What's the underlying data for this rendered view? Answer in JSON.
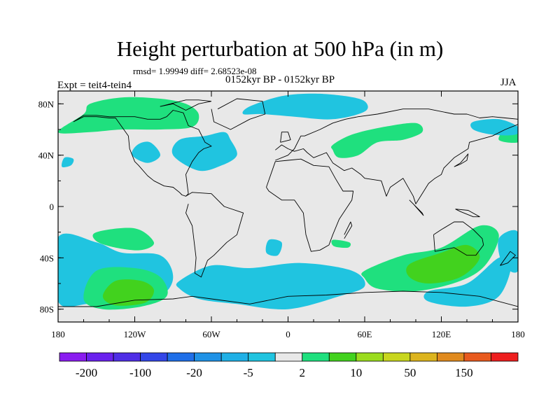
{
  "title": "Height perturbation at 500 hPa (in m)",
  "stats": "rmsd= 1.99949 diff= 2.68523e-08",
  "subtitle": "0152kyr BP - 0152kyr BP",
  "expt": "Expt = teit4-tein4",
  "season": "JJA",
  "map": {
    "projection": "cylindrical equidistant",
    "lon_range": [
      -180,
      180
    ],
    "lat_range": [
      -90,
      90
    ],
    "background_color": "#e8e8e8",
    "lon_ticks": [
      {
        "value": -180,
        "label": "180"
      },
      {
        "value": -120,
        "label": "120W"
      },
      {
        "value": -60,
        "label": "60W"
      },
      {
        "value": 0,
        "label": "0"
      },
      {
        "value": 60,
        "label": "60E"
      },
      {
        "value": 120,
        "label": "120E"
      },
      {
        "value": 180,
        "label": "180"
      }
    ],
    "lat_ticks": [
      {
        "value": 80,
        "label": "80N"
      },
      {
        "value": 40,
        "label": "40N"
      },
      {
        "value": 0,
        "label": "0"
      },
      {
        "value": -40,
        "label": "40S"
      },
      {
        "value": -80,
        "label": "80S"
      }
    ]
  },
  "colorbar": {
    "colors": [
      "#8a1cf0",
      "#6a21ee",
      "#4f2ee6",
      "#3346e8",
      "#1f6fe8",
      "#1f92e6",
      "#1fb0e6",
      "#20c4e0",
      "#e8e8e8",
      "#1fe07e",
      "#42d21e",
      "#9bdc1e",
      "#c8d61e",
      "#dcb41e",
      "#e08a1e",
      "#e85a1e",
      "#ee1e1e"
    ],
    "labels": [
      {
        "after_box": 1,
        "text": "-200"
      },
      {
        "after_box": 3,
        "text": "-100"
      },
      {
        "after_box": 5,
        "text": "-20"
      },
      {
        "after_box": 7,
        "text": "-5"
      },
      {
        "after_box": 9,
        "text": "2"
      },
      {
        "after_box": 11,
        "text": "10"
      },
      {
        "after_box": 13,
        "text": "50"
      },
      {
        "after_box": 15,
        "text": "150"
      }
    ]
  },
  "anomaly_regions": [
    {
      "color": "#1fe07e",
      "lon": [
        -160,
        -155,
        -130,
        -100,
        -80,
        -70,
        -75,
        -100,
        -130,
        -155,
        -180
      ],
      "lat": [
        72,
        80,
        85,
        84,
        80,
        72,
        62,
        60,
        60,
        58,
        58
      ]
    },
    {
      "color": "#1fe07e",
      "lon": [
        180,
        172,
        165,
        180
      ],
      "lat": [
        58,
        62,
        52,
        50
      ]
    },
    {
      "color": "#20c4e0",
      "lon": [
        -85,
        -65,
        -50,
        -45,
        -40,
        -52,
        -70,
        -90
      ],
      "lat": [
        52,
        55,
        58,
        52,
        40,
        32,
        28,
        40
      ]
    },
    {
      "color": "#20c4e0",
      "lon": [
        -118,
        -108,
        -100,
        -110,
        -122
      ],
      "lat": [
        48,
        50,
        40,
        34,
        40
      ]
    },
    {
      "color": "#20c4e0",
      "lon": [
        -175,
        -168,
        -170,
        -177
      ],
      "lat": [
        38,
        37,
        32,
        31
      ]
    },
    {
      "color": "#20c4e0",
      "lon": [
        -30,
        -5,
        20,
        45,
        60,
        60,
        35,
        5,
        -20,
        -35
      ],
      "lat": [
        78,
        86,
        88,
        86,
        82,
        74,
        68,
        70,
        72,
        72
      ]
    },
    {
      "color": "#20c4e0",
      "lon": [
        145,
        165,
        180,
        178,
        160,
        145
      ],
      "lat": [
        66,
        68,
        62,
        56,
        56,
        60
      ]
    },
    {
      "color": "#1fe07e",
      "lon": [
        35,
        50,
        75,
        100,
        105,
        90,
        70,
        55,
        40,
        35
      ],
      "lat": [
        48,
        56,
        62,
        65,
        58,
        52,
        50,
        40,
        38,
        44
      ]
    },
    {
      "color": "#1fe07e",
      "lon": [
        -150,
        -120,
        -105,
        -115,
        -135,
        -150
      ],
      "lat": [
        -20,
        -17,
        -28,
        -34,
        -32,
        -27
      ]
    },
    {
      "color": "#20c4e0",
      "lon": [
        -180,
        -150,
        -130,
        -100,
        -90,
        -100,
        -130,
        -155,
        -180
      ],
      "lat": [
        -24,
        -28,
        -36,
        -38,
        -55,
        -70,
        -78,
        -76,
        -74
      ]
    },
    {
      "color": "#1fe07e",
      "lon": [
        -150,
        -120,
        -100,
        -95,
        -115,
        -145,
        -160
      ],
      "lat": [
        -50,
        -48,
        -55,
        -70,
        -78,
        -80,
        -72
      ]
    },
    {
      "color": "#42d21e",
      "lon": [
        -135,
        -115,
        -105,
        -112,
        -135,
        -145
      ],
      "lat": [
        -58,
        -58,
        -65,
        -75,
        -77,
        -70
      ]
    },
    {
      "color": "#20c4e0",
      "lon": [
        -85,
        -60,
        -30,
        10,
        50,
        60,
        40,
        0,
        -40,
        -70,
        -85
      ],
      "lat": [
        -58,
        -46,
        -48,
        -44,
        -50,
        -62,
        -70,
        -80,
        -76,
        -72,
        -64
      ]
    },
    {
      "color": "#20c4e0",
      "lon": [
        -15,
        -5,
        -8,
        -17
      ],
      "lat": [
        -26,
        -28,
        -38,
        -36
      ]
    },
    {
      "color": "#1fe07e",
      "lon": [
        60,
        90,
        120,
        150,
        165,
        155,
        135,
        100,
        70,
        60
      ],
      "lat": [
        -50,
        -38,
        -32,
        -15,
        -22,
        -45,
        -58,
        -66,
        -64,
        -56
      ]
    },
    {
      "color": "#42d21e",
      "lon": [
        95,
        120,
        140,
        150,
        135,
        110,
        95
      ],
      "lat": [
        -45,
        -36,
        -30,
        -40,
        -55,
        -60,
        -55
      ]
    },
    {
      "color": "#20c4e0",
      "lon": [
        110,
        140,
        165,
        175,
        165,
        140,
        110
      ],
      "lat": [
        -66,
        -60,
        -40,
        -44,
        -70,
        -78,
        -74
      ]
    },
    {
      "color": "#1fe07e",
      "lon": [
        35,
        48,
        47,
        36
      ],
      "lat": [
        -26,
        -28,
        -32,
        -31
      ]
    },
    {
      "color": "#20c4e0",
      "lon": [
        165,
        180,
        180,
        168
      ],
      "lat": [
        -25,
        -20,
        -50,
        -45
      ]
    }
  ],
  "coastlines": [
    {
      "lon": [
        -168,
        -160,
        -150,
        -140,
        -135,
        -125,
        -124,
        -120,
        -117,
        -110,
        -105,
        -97,
        -90,
        -85,
        -83,
        -80,
        -78,
        -80,
        -75,
        -70,
        -66,
        -60,
        -65,
        -70,
        -78,
        -82,
        -90,
        -95,
        -100,
        -110,
        -120,
        -130,
        -140,
        -150,
        -160,
        -168
      ],
      "lat": [
        66,
        70,
        70,
        69,
        69,
        55,
        45,
        35,
        32,
        24,
        20,
        16,
        15,
        11,
        9,
        8,
        10,
        25,
        35,
        42,
        45,
        47,
        50,
        60,
        63,
        73,
        75,
        70,
        68,
        68,
        70,
        70,
        70,
        71,
        71,
        66
      ]
    },
    {
      "lon": [
        -80,
        -75,
        -60,
        -50,
        -35,
        -40,
        -48,
        -58,
        -63,
        -68,
        -73,
        -72,
        -75,
        -80,
        -78
      ],
      "lat": [
        8,
        11,
        10,
        0,
        -5,
        -22,
        -28,
        -38,
        -42,
        -55,
        -52,
        -40,
        -15,
        -5,
        2
      ]
    },
    {
      "lon": [
        -55,
        -40,
        -20,
        -18,
        -30,
        -45,
        -58,
        -60
      ],
      "lat": [
        76,
        84,
        82,
        72,
        68,
        60,
        66,
        76
      ]
    },
    {
      "lon": [
        -10,
        0,
        5,
        10,
        13,
        25,
        35,
        45,
        55,
        70,
        90,
        110,
        130,
        140,
        150,
        160,
        170,
        180,
        180,
        170,
        160,
        142,
        141,
        130,
        122,
        120,
        115,
        110,
        105,
        100,
        98,
        90,
        80,
        77,
        73,
        60,
        57,
        50,
        44,
        35,
        30,
        20,
        15,
        12,
        5,
        0,
        -5,
        -10
      ],
      "lat": [
        36,
        40,
        45,
        55,
        55,
        60,
        65,
        68,
        70,
        72,
        76,
        76,
        72,
        72,
        69,
        70,
        69,
        68,
        64,
        60,
        55,
        50,
        45,
        38,
        30,
        25,
        22,
        18,
        10,
        2,
        8,
        22,
        15,
        8,
        20,
        22,
        25,
        30,
        28,
        34,
        42,
        38,
        42,
        45,
        43,
        45,
        48,
        44
      ]
    },
    {
      "lon": [
        -17,
        -10,
        0,
        10,
        20,
        32,
        37,
        43,
        51,
        50,
        40,
        35,
        32,
        25,
        18,
        14,
        12,
        5,
        -5,
        -15,
        -17
      ],
      "lat": [
        15,
        35,
        36,
        37,
        32,
        31,
        22,
        12,
        12,
        5,
        -10,
        -22,
        -30,
        -34,
        -35,
        -22,
        -5,
        5,
        5,
        12,
        15
      ]
    },
    {
      "lon": [
        114,
        120,
        130,
        137,
        145,
        152,
        153,
        147,
        140,
        135,
        130,
        115,
        114
      ],
      "lat": [
        -22,
        -18,
        -12,
        -12,
        -18,
        -25,
        -30,
        -38,
        -38,
        -35,
        -32,
        -35,
        -22
      ]
    },
    {
      "lon": [
        -180,
        -150,
        -120,
        -90,
        -75,
        -60,
        -30,
        0,
        30,
        60,
        90,
        120,
        150,
        180
      ],
      "lat": [
        -78,
        -78,
        -73,
        -72,
        -70,
        -72,
        -76,
        -70,
        -69,
        -67,
        -66,
        -67,
        -70,
        -78
      ]
    },
    {
      "lon": [
        -6,
        2,
        0,
        -5,
        -6
      ],
      "lat": [
        50,
        52,
        58,
        58,
        50
      ]
    },
    {
      "lon": [
        130,
        135,
        141,
        140,
        135,
        130
      ],
      "lat": [
        31,
        34,
        41,
        36,
        33,
        31
      ]
    },
    {
      "lon": [
        44,
        50,
        49,
        44
      ],
      "lat": [
        -25,
        -15,
        -12,
        -22
      ]
    },
    {
      "lon": [
        95,
        105,
        106,
        98,
        95
      ],
      "lat": [
        5,
        -5,
        -7,
        2,
        5
      ]
    },
    {
      "lon": [
        131,
        141,
        150,
        145,
        135,
        131
      ],
      "lat": [
        -2,
        -3,
        -8,
        -8,
        -4,
        -2
      ]
    },
    {
      "lon": [
        166,
        174,
        178,
        172,
        166
      ],
      "lat": [
        -46,
        -35,
        -38,
        -44,
        -46
      ]
    },
    {
      "lon": [
        -60,
        -70,
        -80,
        -90,
        -100,
        -80,
        -70,
        -60
      ],
      "lat": [
        82,
        80,
        75,
        80,
        78,
        83,
        83,
        82
      ]
    }
  ]
}
